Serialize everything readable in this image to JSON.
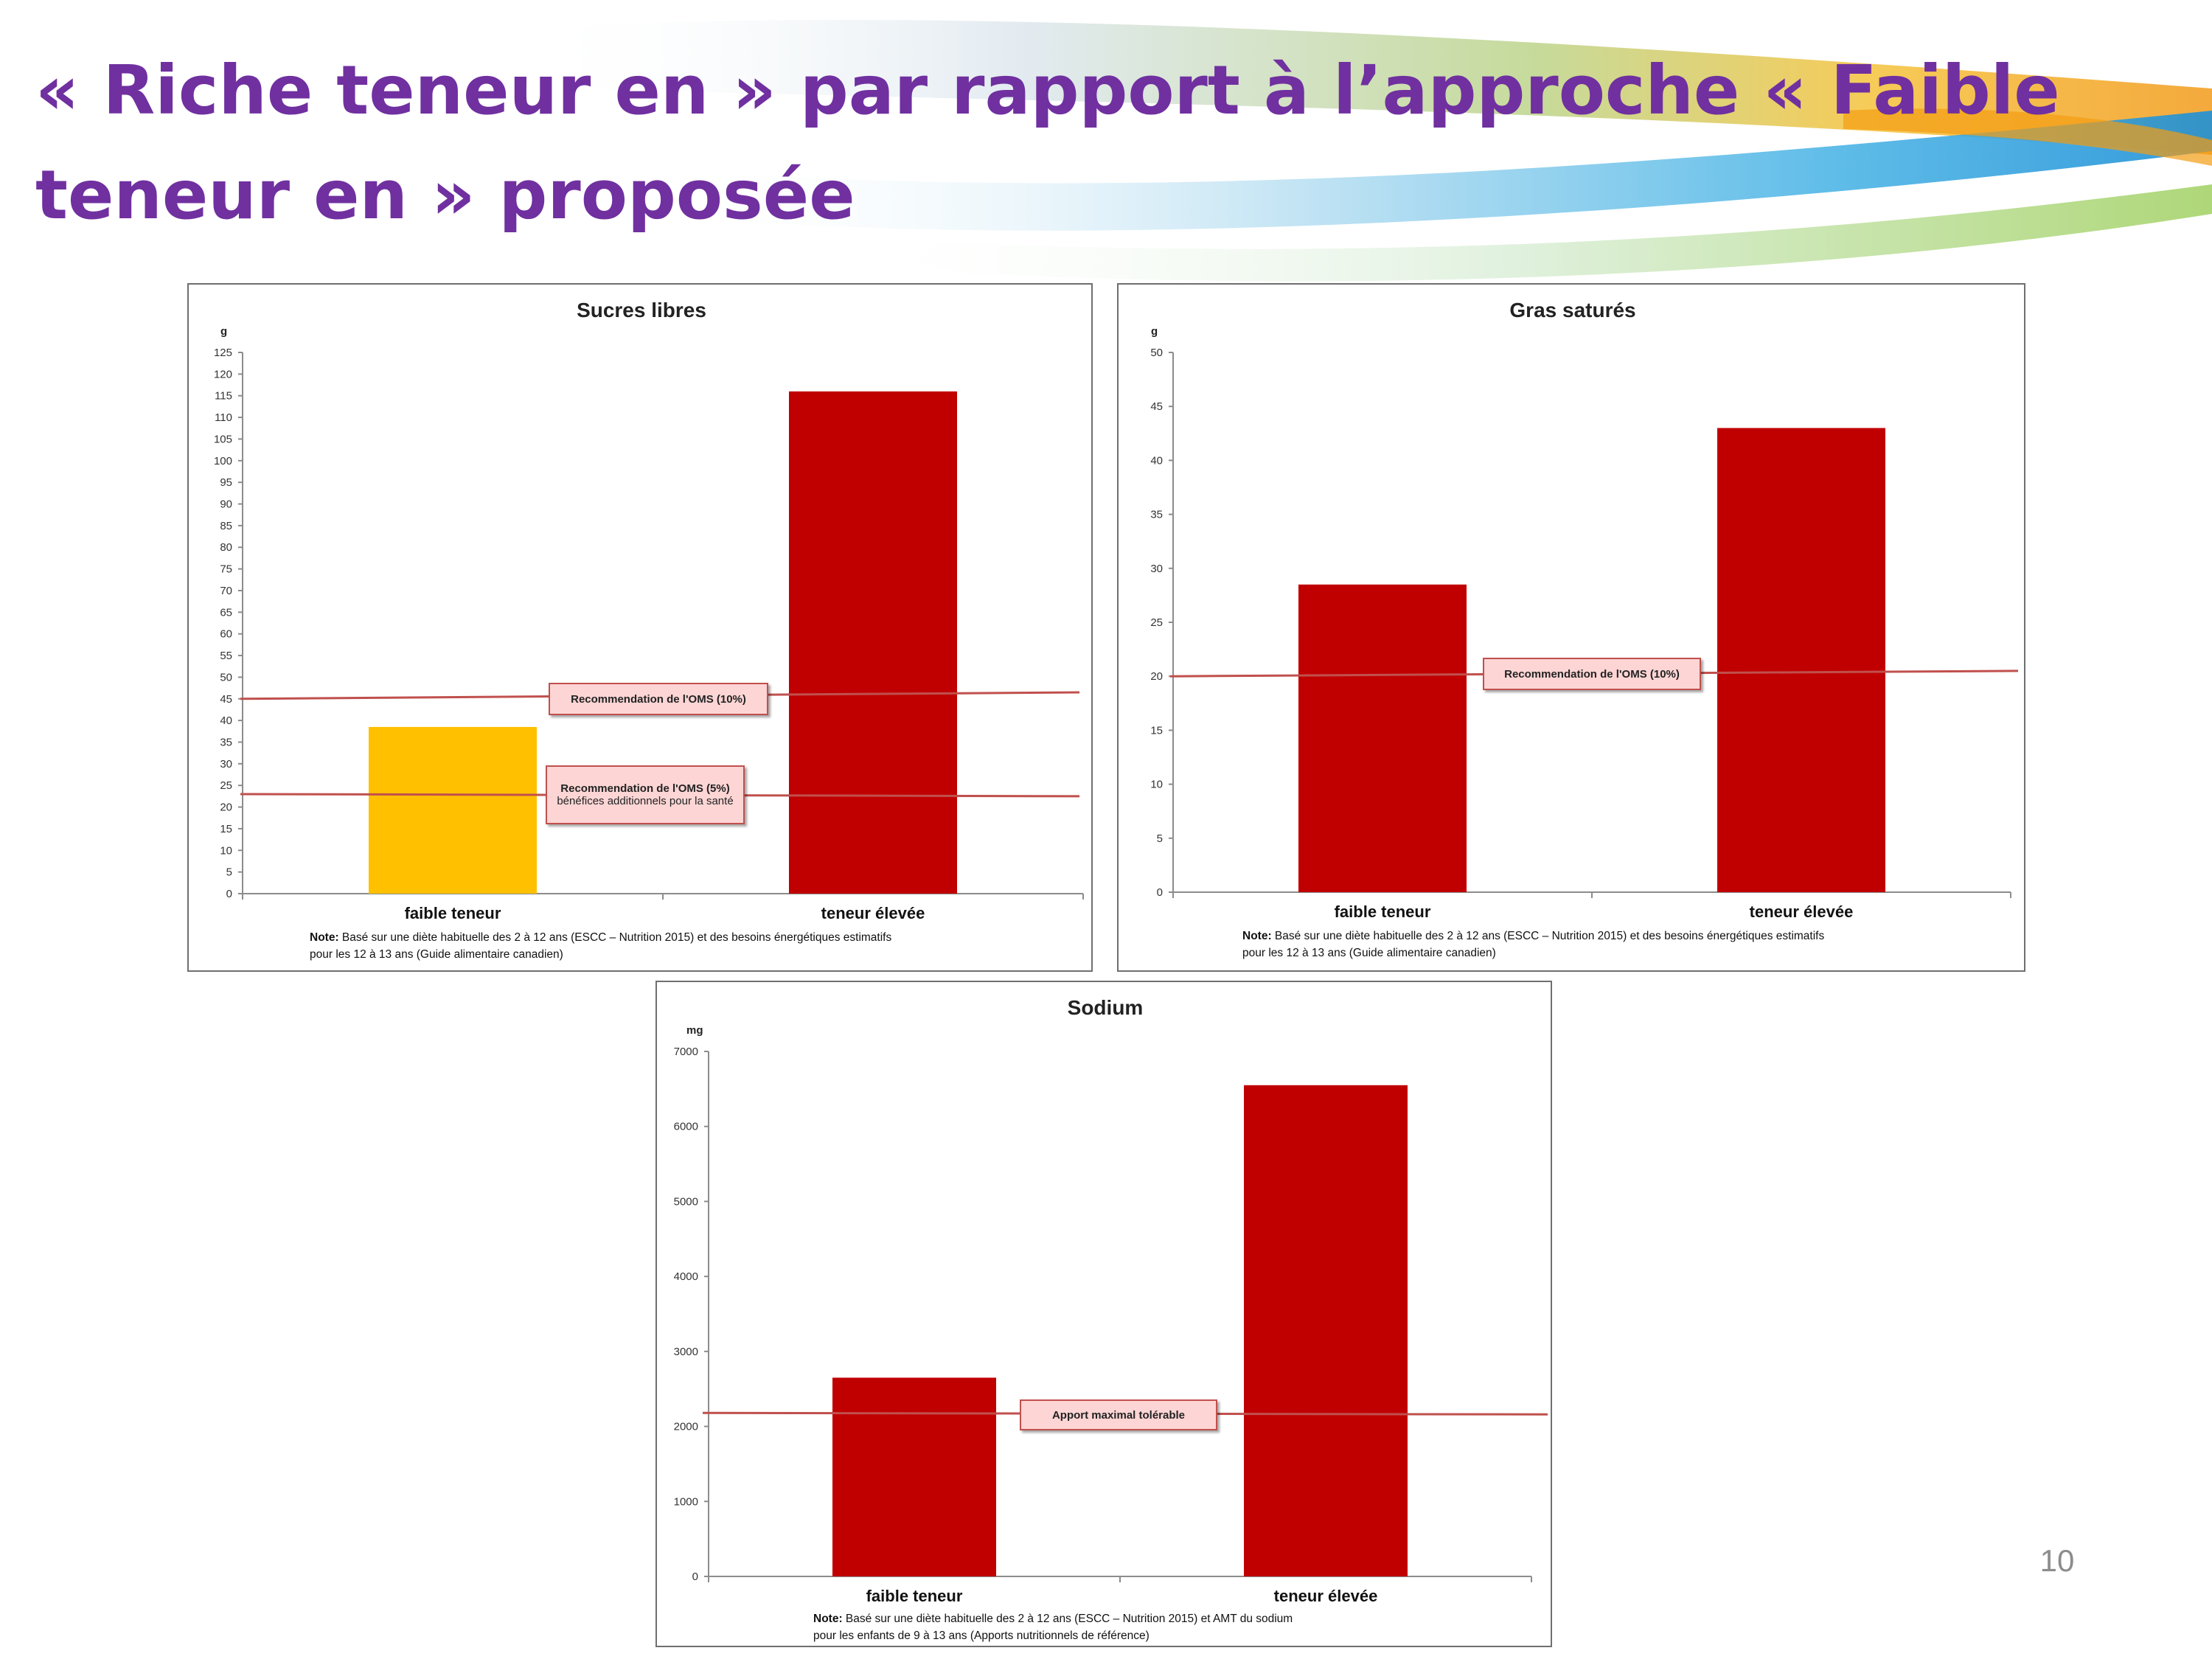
{
  "slide": {
    "title": "« Riche teneur en » par rapport à l’approche « Faible teneur en » proposée",
    "page_number": "10"
  },
  "colors": {
    "title": "#7030a0",
    "bar_red": "#c00000",
    "bar_yellow": "#ffc000",
    "reference_line": "#c0504d",
    "callout_fill": "#fdd5d5"
  },
  "chart_data": [
    {
      "type": "bar",
      "title": "Sucres libres",
      "ylabel": "g",
      "ylim": [
        0,
        125
      ],
      "yticks": [
        "0",
        "5",
        "10",
        "15",
        "20",
        "25",
        "30",
        "35",
        "40",
        "45",
        "50",
        "55",
        "60",
        "65",
        "70",
        "75",
        "80",
        "85",
        "90",
        "95",
        "100",
        "105",
        "110",
        "115",
        "120",
        "125"
      ],
      "categories": [
        "faible teneur",
        "teneur élevée"
      ],
      "values": [
        38.5,
        116
      ],
      "bar_colors": [
        "#ffc000",
        "#c00000"
      ],
      "reference_lines": [
        {
          "label": "Recommendation de l'OMS (10%)",
          "sublabel": "",
          "y": [
            45,
            46.5
          ]
        },
        {
          "label": "Recommendation de l'OMS (5%)",
          "sublabel": "bénéfices additionnels pour la santé",
          "y": [
            23,
            22.5
          ]
        }
      ],
      "note_label": "Note:",
      "note": "Basé sur une diète habituelle des 2 à 12 ans (ESCC – Nutrition 2015) et des besoins énergétiques estimatifs",
      "note2": "pour les  12 à 13 ans (Guide alimentaire canadien)"
    },
    {
      "type": "bar",
      "title": "Gras saturés",
      "ylabel": "g",
      "ylim": [
        0,
        50
      ],
      "yticks": [
        "0",
        "5",
        "10",
        "15",
        "20",
        "25",
        "30",
        "35",
        "40",
        "45",
        "50"
      ],
      "categories": [
        "faible teneur",
        "teneur élevée"
      ],
      "values": [
        28.5,
        43
      ],
      "bar_colors": [
        "#c00000",
        "#c00000"
      ],
      "reference_lines": [
        {
          "label": "Recommendation de l'OMS (10%)",
          "sublabel": "",
          "y": [
            20,
            20.5
          ]
        }
      ],
      "note_label": "Note:",
      "note": "Basé sur une diète habituelle des 2 à 12 ans (ESCC – Nutrition 2015) et des besoins énergétiques estimatifs",
      "note2": "pour les  12 à 13 ans (Guide alimentaire canadien)"
    },
    {
      "type": "bar",
      "title": "Sodium",
      "ylabel": "mg",
      "ylim": [
        0,
        7000
      ],
      "yticks": [
        "0",
        "1000",
        "2000",
        "3000",
        "4000",
        "5000",
        "6000",
        "7000"
      ],
      "categories": [
        "faible teneur",
        "teneur élevée"
      ],
      "values": [
        2650,
        6550
      ],
      "bar_colors": [
        "#c00000",
        "#c00000"
      ],
      "reference_lines": [
        {
          "label": "Apport maximal tolérable",
          "sublabel": "",
          "y": [
            2180,
            2160
          ]
        }
      ],
      "note_label": "Note:",
      "note": "Basé sur une diète habituelle des 2 à 12 ans (ESCC – Nutrition 2015) et AMT du sodium",
      "note2": "pour les enfants de 9 à 13 ans (Apports nutritionnels de référence)"
    }
  ]
}
